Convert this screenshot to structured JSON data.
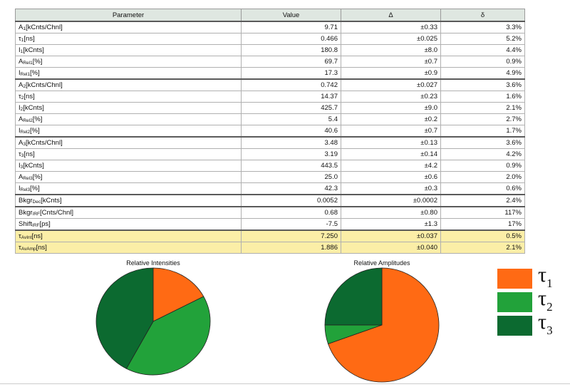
{
  "table": {
    "headers": {
      "parameter": "Parameter",
      "value": "Value",
      "delta": "Δ",
      "rel": "δ"
    },
    "rows": [
      {
        "name": "A",
        "sub": "1",
        "unit": "[kCnts/Chnl]",
        "value": "9.71",
        "delta": "±0.33",
        "rel": "3.3%",
        "group_start": true,
        "highlight": false
      },
      {
        "name": "τ",
        "sub": "1",
        "unit": "[ns]",
        "value": "0.466",
        "delta": "±0.025",
        "rel": "5.2%",
        "group_start": false,
        "highlight": false
      },
      {
        "name": "I",
        "sub": "1",
        "unit": "[kCnts]",
        "value": "180.8",
        "delta": "±8.0",
        "rel": "4.4%",
        "group_start": false,
        "highlight": false
      },
      {
        "name": "A",
        "sub": "Rel1",
        "unit": "[%]",
        "value": "69.7",
        "delta": "±0.7",
        "rel": "0.9%",
        "group_start": false,
        "highlight": false
      },
      {
        "name": "I",
        "sub": "Rel1",
        "unit": "[%]",
        "value": "17.3",
        "delta": "±0.9",
        "rel": "4.9%",
        "group_start": false,
        "highlight": false
      },
      {
        "name": "A",
        "sub": "2",
        "unit": "[kCnts/Chnl]",
        "value": "0.742",
        "delta": "±0.027",
        "rel": "3.6%",
        "group_start": true,
        "highlight": false
      },
      {
        "name": "τ",
        "sub": "2",
        "unit": "[ns]",
        "value": "14.37",
        "delta": "±0.23",
        "rel": "1.6%",
        "group_start": false,
        "highlight": false
      },
      {
        "name": "I",
        "sub": "2",
        "unit": "[kCnts]",
        "value": "425.7",
        "delta": "±9.0",
        "rel": "2.1%",
        "group_start": false,
        "highlight": false
      },
      {
        "name": "A",
        "sub": "Rel2",
        "unit": "[%]",
        "value": "5.4",
        "delta": "±0.2",
        "rel": "2.7%",
        "group_start": false,
        "highlight": false
      },
      {
        "name": "I",
        "sub": "Rel2",
        "unit": "[%]",
        "value": "40.6",
        "delta": "±0.7",
        "rel": "1.7%",
        "group_start": false,
        "highlight": false
      },
      {
        "name": "A",
        "sub": "3",
        "unit": "[kCnts/Chnl]",
        "value": "3.48",
        "delta": "±0.13",
        "rel": "3.6%",
        "group_start": true,
        "highlight": false
      },
      {
        "name": "τ",
        "sub": "3",
        "unit": "[ns]",
        "value": "3.19",
        "delta": "±0.14",
        "rel": "4.2%",
        "group_start": false,
        "highlight": false
      },
      {
        "name": "I",
        "sub": "3",
        "unit": "[kCnts]",
        "value": "443.5",
        "delta": "±4.2",
        "rel": "0.9%",
        "group_start": false,
        "highlight": false
      },
      {
        "name": "A",
        "sub": "Rel3",
        "unit": "[%]",
        "value": "25.0",
        "delta": "±0.6",
        "rel": "2.0%",
        "group_start": false,
        "highlight": false
      },
      {
        "name": "I",
        "sub": "Rel3",
        "unit": "[%]",
        "value": "42.3",
        "delta": "±0.3",
        "rel": "0.6%",
        "group_start": false,
        "highlight": false
      },
      {
        "name": "Bkgr",
        "sub": "Dec",
        "unit": "[kCnts]",
        "value": "0.0052",
        "delta": "±0.0002",
        "rel": "2.4%",
        "group_start": true,
        "highlight": false
      },
      {
        "name": "Bkgr",
        "sub": "IRF",
        "unit": "[Cnts/Chnl]",
        "value": "0.68",
        "delta": "±0.80",
        "rel": "117%",
        "group_start": true,
        "highlight": false
      },
      {
        "name": "Shift",
        "sub": "IRF",
        "unit": "[ps]",
        "value": "-7.5",
        "delta": "±1.3",
        "rel": "17%",
        "group_start": false,
        "highlight": false
      },
      {
        "name": "τ",
        "sub": "AvInt",
        "unit": "[ns]",
        "value": "7.250",
        "delta": "±0.037",
        "rel": "0.5%",
        "group_start": true,
        "highlight": true
      },
      {
        "name": "τ",
        "sub": "AvAmp",
        "unit": "[ns]",
        "value": "1.886",
        "delta": "±0.040",
        "rel": "2.1%",
        "group_start": false,
        "highlight": true
      }
    ]
  },
  "chart_data": [
    {
      "type": "pie",
      "title": "Relative Intensities",
      "categories": [
        "τ1",
        "τ2",
        "τ3"
      ],
      "values": [
        17.3,
        40.6,
        42.3
      ],
      "colors": [
        "#ff6a14",
        "#22a23a",
        "#0c6a30"
      ],
      "start_angle": "top",
      "direction": "clockwise"
    },
    {
      "type": "pie",
      "title": "Relative Amplitudes",
      "categories": [
        "τ1",
        "τ2",
        "τ3"
      ],
      "values": [
        69.7,
        5.4,
        25.0
      ],
      "colors": [
        "#ff6a14",
        "#22a23a",
        "#0c6a30"
      ],
      "start_angle": "top",
      "direction": "clockwise"
    }
  ],
  "legend": {
    "items": [
      {
        "symbol": "τ",
        "sub": "1",
        "color": "#ff6a14"
      },
      {
        "symbol": "τ",
        "sub": "2",
        "color": "#22a23a"
      },
      {
        "symbol": "τ",
        "sub": "3",
        "color": "#0c6a30"
      }
    ]
  }
}
